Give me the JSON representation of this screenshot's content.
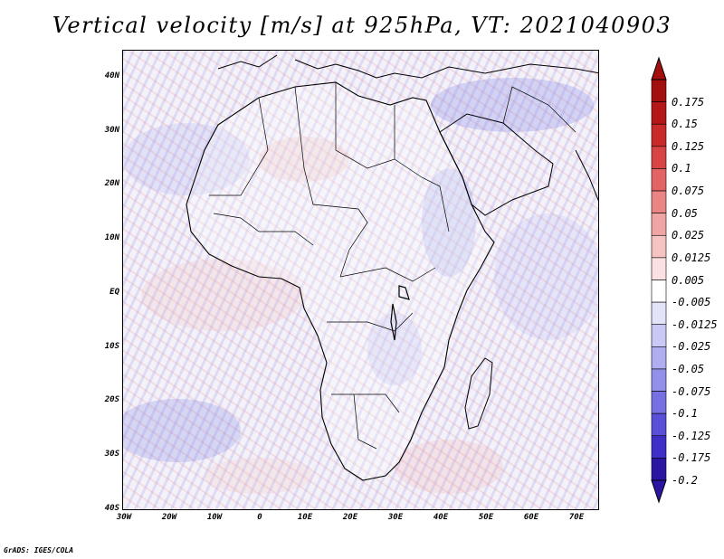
{
  "title": "Vertical velocity [m/s] at 925hPa, VT: 2021040903",
  "credit": "GrADS: IGES/COLA",
  "map": {
    "lat_range": [
      -40,
      45
    ],
    "lon_range": [
      -30,
      75
    ],
    "lat_ticks": [
      "40N",
      "30N",
      "20N",
      "10N",
      "EQ",
      "10S",
      "20S",
      "30S",
      "40S"
    ],
    "lon_ticks": [
      "30W",
      "20W",
      "10W",
      "0",
      "10E",
      "20E",
      "30E",
      "40E",
      "50E",
      "60E",
      "70E"
    ]
  },
  "colorbar": {
    "colors": [
      "#2b16a3",
      "#3e2fc9",
      "#5a4fd9",
      "#7670e2",
      "#9290e9",
      "#aeaef0",
      "#c9c9f6",
      "#e3e3fa",
      "#ffffff",
      "#fbe1e1",
      "#f6c3c3",
      "#f0a5a5",
      "#ea8585",
      "#e36464",
      "#d84444",
      "#c92a2a",
      "#b41717",
      "#a30e0e"
    ],
    "labels": [
      "0.175",
      "0.15",
      "0.125",
      "0.1",
      "0.075",
      "0.05",
      "0.025",
      "0.0125",
      "0.005",
      "-0.005",
      "-0.0125",
      "-0.025",
      "-0.05",
      "-0.075",
      "-0.1",
      "-0.125",
      "-0.175",
      "-0.2"
    ]
  }
}
